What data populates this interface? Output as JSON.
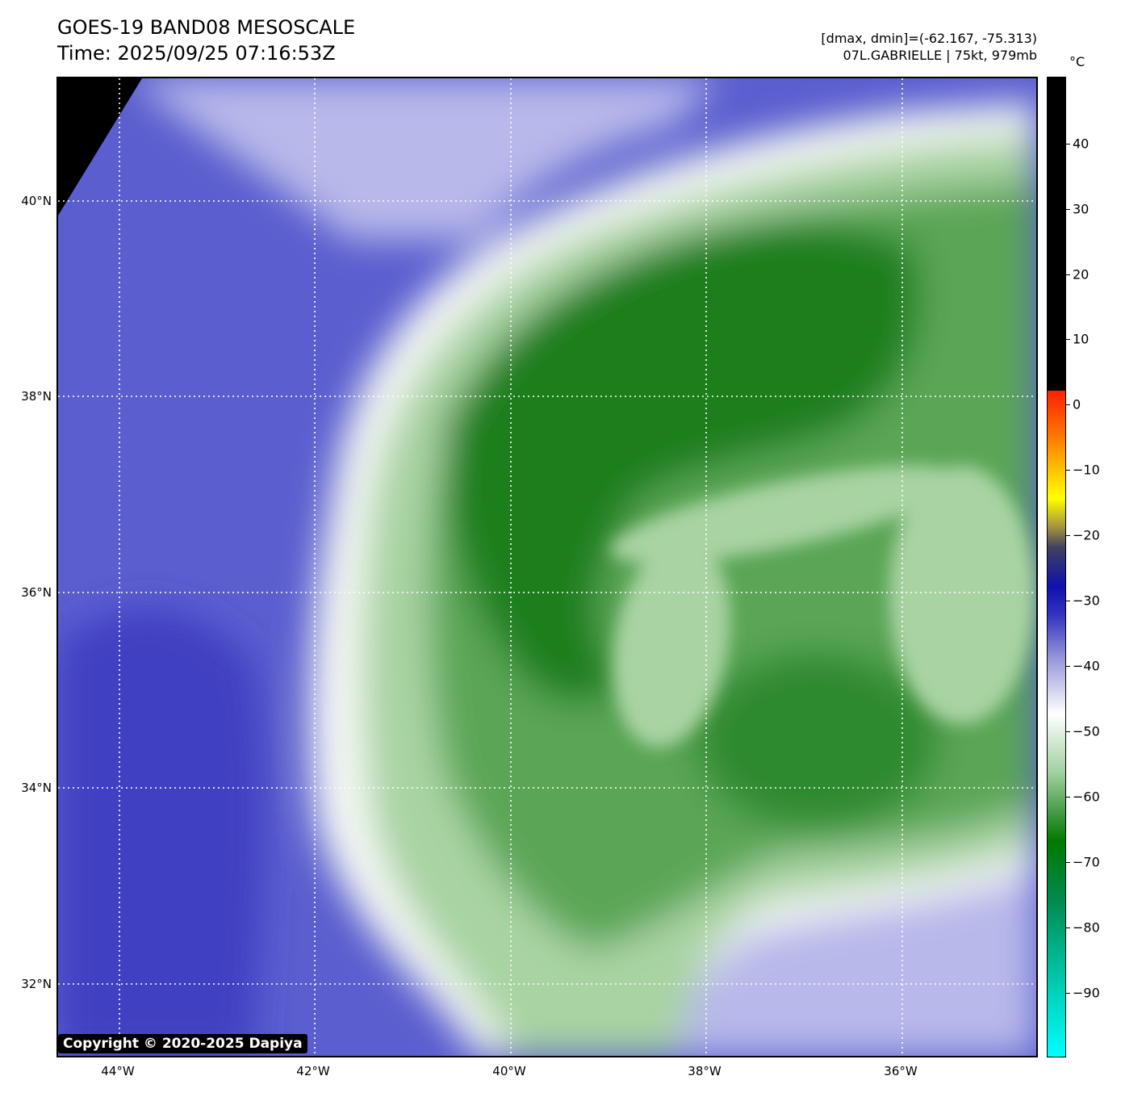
{
  "header": {
    "title_line1": "GOES-19 BAND08 MESOSCALE",
    "title_line2": "Time: 2025/09/25 07:16:53Z",
    "info_line1": "[dmax, dmin]=(-62.167, -75.313)",
    "info_line2": "07L.GABRIELLE | 75kt, 979mb"
  },
  "map": {
    "latitude_labels": [
      "40°N",
      "38°N",
      "36°N",
      "34°N",
      "32°N"
    ],
    "longitude_labels": [
      "44°W",
      "42°W",
      "40°W",
      "38°W",
      "36°W"
    ],
    "gridlines": "dotted white",
    "colors": {
      "background_clear_air": "#5a5ecf",
      "dark_blue_band": "#3f3fc2",
      "light_lavender": "#b8b8ea",
      "cold_cloud_green": "#1f7f1f",
      "pale_green": "#a9d3a3",
      "white_edge": "#f4f8f4",
      "no_data": "#000000"
    },
    "copyright": "Copyright © 2020-2025 Dapiya"
  },
  "colorbar": {
    "unit": "°C",
    "ticks": [
      "40",
      "30",
      "20",
      "10",
      "0",
      "−10",
      "−20",
      "−30",
      "−40",
      "−50",
      "−60",
      "−70",
      "−80",
      "−90"
    ],
    "top_color": "#000000",
    "bottom_color": "#00ffff"
  }
}
